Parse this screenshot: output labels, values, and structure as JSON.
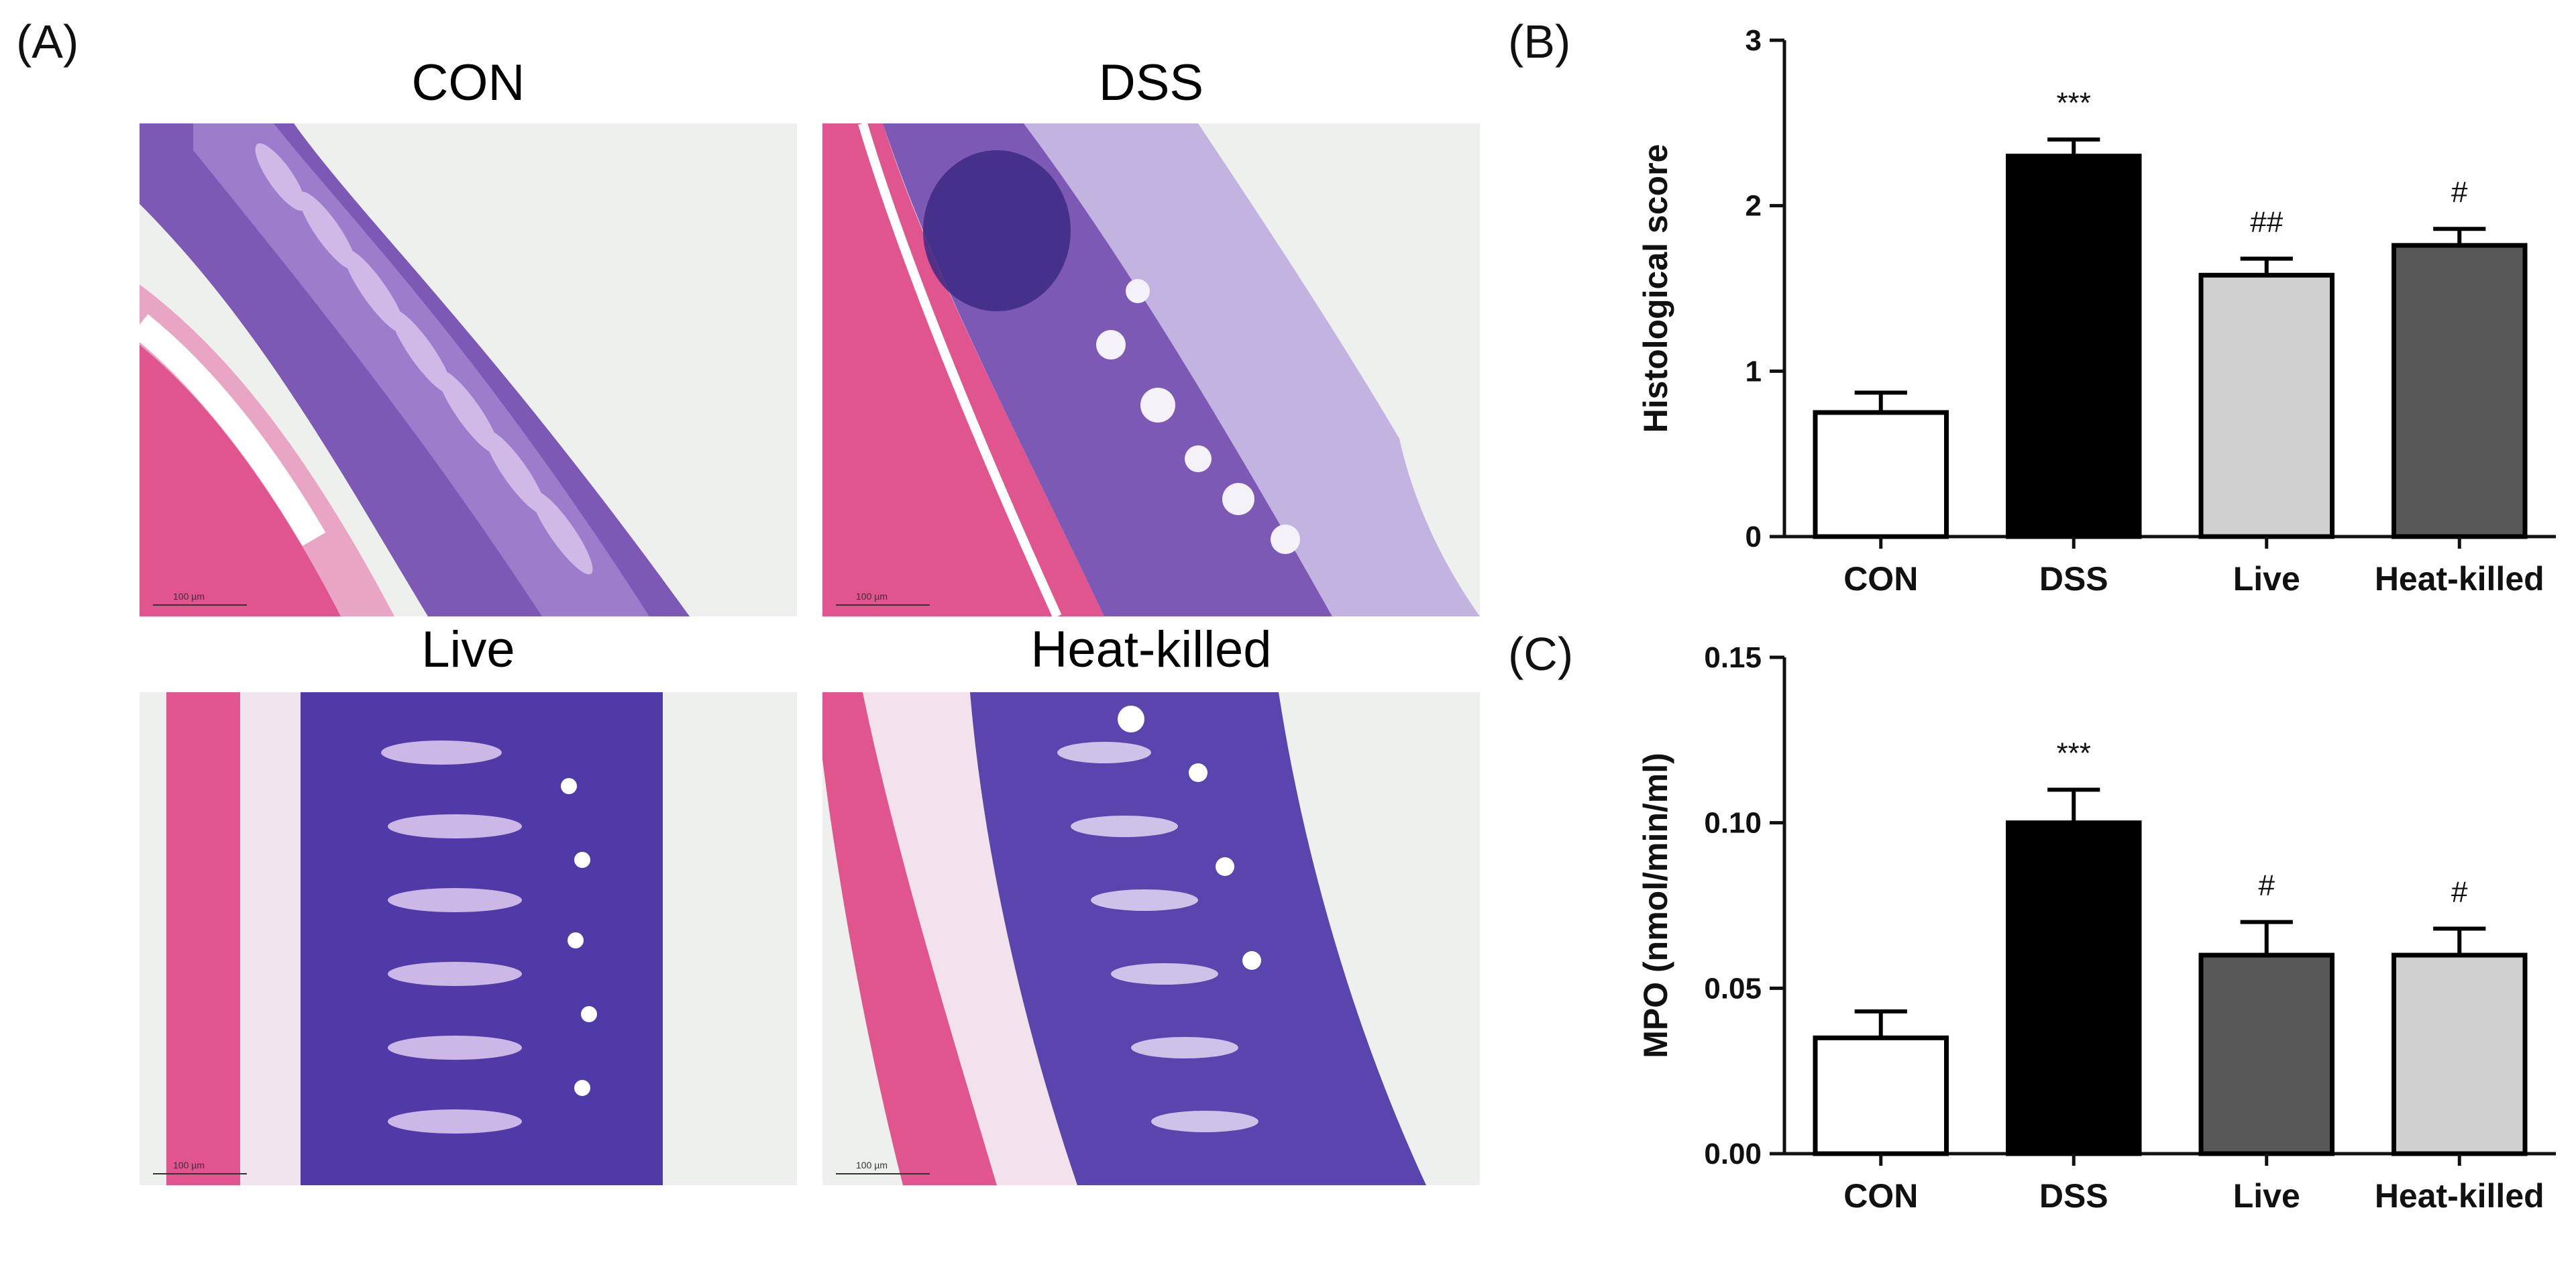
{
  "figure": {
    "panel_a_label": "(A)",
    "panel_b_label": "(B)",
    "panel_c_label": "(C)",
    "images": [
      {
        "title": "CON",
        "scalebar": "100 µm"
      },
      {
        "title": "DSS",
        "scalebar": "100 µm"
      },
      {
        "title": "Live",
        "scalebar": "100 µm"
      },
      {
        "title": "Heat-killed",
        "scalebar": "100 µm"
      }
    ]
  },
  "chart_data": [
    {
      "type": "bar",
      "panel": "(B)",
      "ylabel": "Histological score",
      "xlabel": "",
      "categories": [
        "CON",
        "DSS",
        "Live",
        "Heat-killed"
      ],
      "values": [
        0.75,
        2.3,
        1.58,
        1.76
      ],
      "errors": [
        0.12,
        0.1,
        0.1,
        0.1
      ],
      "annotations": [
        "",
        "***",
        "##",
        "#"
      ],
      "bar_colors": [
        "#ffffff",
        "#000000",
        "#d0d0d0",
        "#585858"
      ],
      "ylim": [
        0,
        3
      ],
      "yticks": [
        "0",
        "1",
        "2",
        "3"
      ],
      "grid": false
    },
    {
      "type": "bar",
      "panel": "(C)",
      "ylabel": "MPO (nmol/min/ml)",
      "xlabel": "",
      "categories": [
        "CON",
        "DSS",
        "Live",
        "Heat-killed"
      ],
      "values": [
        0.035,
        0.1,
        0.06,
        0.06
      ],
      "errors": [
        0.008,
        0.01,
        0.01,
        0.008
      ],
      "annotations": [
        "",
        "***",
        "#",
        "#"
      ],
      "bar_colors": [
        "#ffffff",
        "#000000",
        "#585858",
        "#d0d0d0"
      ],
      "ylim": [
        0,
        0.15
      ],
      "yticks": [
        "0.00",
        "0.05",
        "0.10",
        "0.15"
      ],
      "grid": false
    }
  ]
}
